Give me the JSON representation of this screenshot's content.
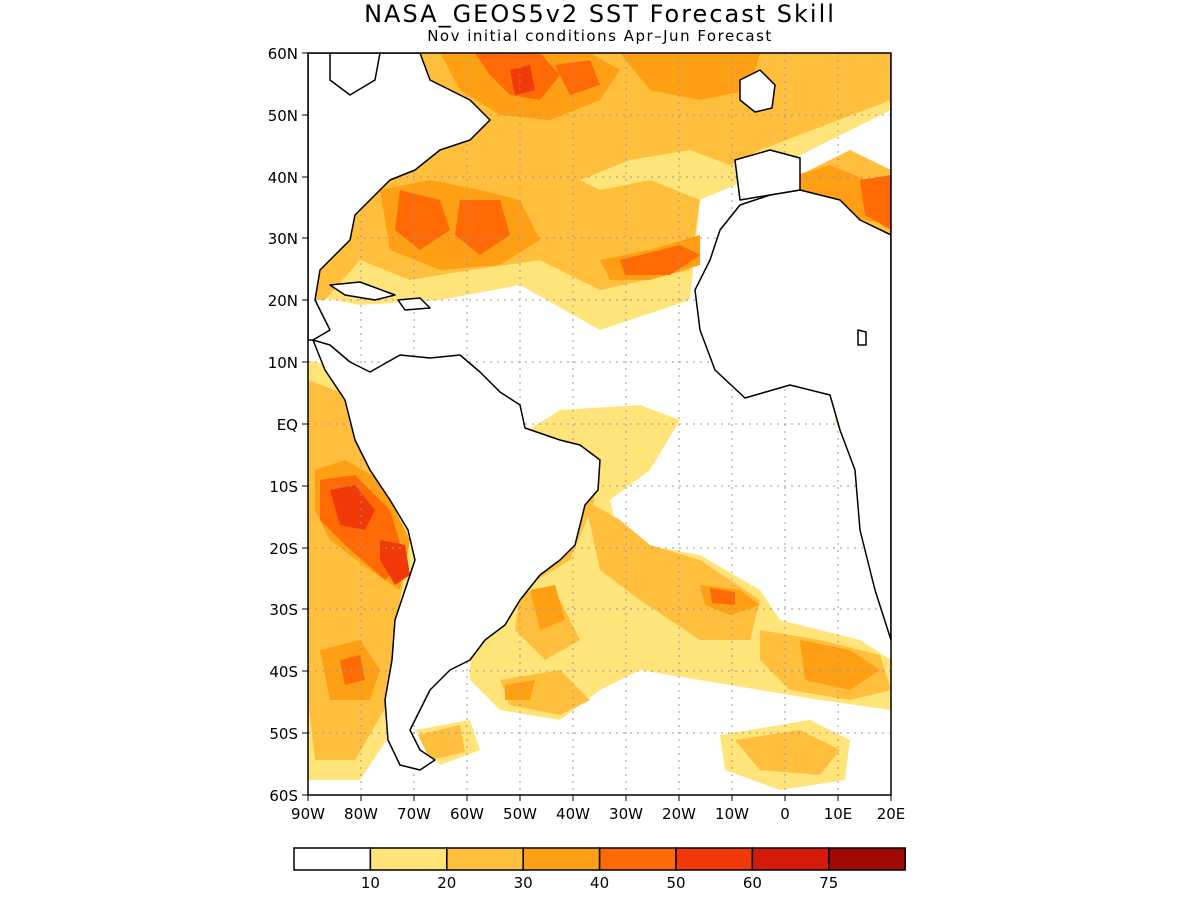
{
  "title": "NASA_GEOS5v2 SST Forecast Skill",
  "subtitle": "Nov initial conditions  Apr–Jun Forecast",
  "lat_labels": [
    "60N",
    "50N",
    "40N",
    "30N",
    "20N",
    "10N",
    "EQ",
    "10S",
    "20S",
    "30S",
    "40S",
    "50S",
    "60S"
  ],
  "lon_labels": [
    "90W",
    "80W",
    "70W",
    "60W",
    "50W",
    "40W",
    "30W",
    "20W",
    "10W",
    "0",
    "10E",
    "20E"
  ],
  "grid": true,
  "colors": {
    "land_outline": "#000000",
    "ocean_none": "#ffffff",
    "grid": "#999999"
  },
  "legend": {
    "bins": [
      {
        "color": "#ffffff"
      },
      {
        "color": "#ffe47a"
      },
      {
        "color": "#ffbe3c"
      },
      {
        "color": "#ff9f14"
      },
      {
        "color": "#ff6a05"
      },
      {
        "color": "#f23a08"
      },
      {
        "color": "#d41a08"
      },
      {
        "color": "#a00a04"
      }
    ],
    "labels": [
      "10",
      "20",
      "30",
      "40",
      "50",
      "60",
      "75"
    ]
  },
  "chart_data": {
    "type": "heatmap",
    "title": "NASA_GEOS5v2 SST Forecast Skill",
    "subtitle": "Nov initial conditions  Apr–Jun Forecast",
    "xlabel": "",
    "ylabel": "",
    "xlim": [
      -90,
      20
    ],
    "ylim": [
      -60,
      60
    ],
    "x_ticks": [
      "90W",
      "80W",
      "70W",
      "60W",
      "50W",
      "40W",
      "30W",
      "20W",
      "10W",
      "0",
      "10E",
      "20E"
    ],
    "y_ticks": [
      "60N",
      "50N",
      "40N",
      "30N",
      "20N",
      "10N",
      "EQ",
      "10S",
      "20S",
      "30S",
      "40S",
      "50S",
      "60S"
    ],
    "colorbar_levels": [
      10,
      20,
      30,
      40,
      50,
      60,
      75
    ],
    "grid": true
  }
}
